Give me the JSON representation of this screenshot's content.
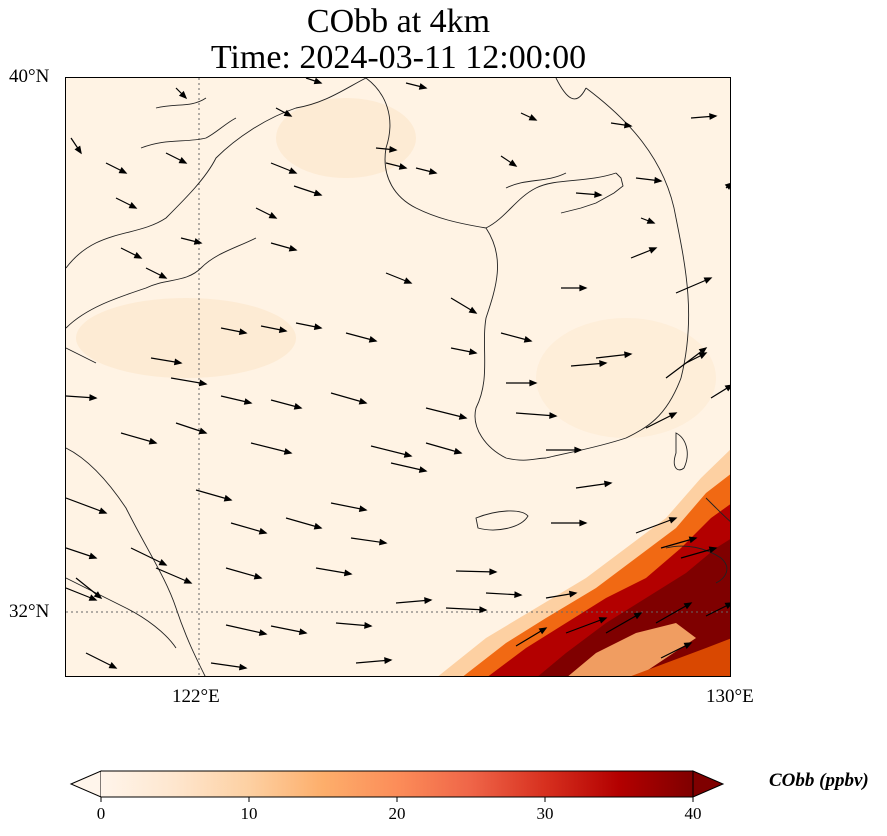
{
  "title": {
    "line1": "CObb at 4km",
    "line2": "Time: 2024-03-11 12:00:00"
  },
  "map": {
    "lat_ticks": [
      "40°N",
      "32°N"
    ],
    "lon_ticks": [
      "122°E",
      "130°E"
    ],
    "extent": {
      "lon_min": 120,
      "lon_max": 130,
      "lat_min": 31,
      "lat_max": 40
    },
    "gridlines": {
      "lon": [
        122
      ],
      "lat": [
        32
      ],
      "style": "dotted"
    },
    "features": [
      "coastlines",
      "borders"
    ],
    "field": "CObb",
    "overlay": "wind vectors",
    "high_concentration_region": "southeast corner",
    "colors": {
      "low": "#fff5eb",
      "mid": "#fdae6b",
      "high": "#7f0000"
    }
  },
  "colorbar": {
    "label": "CObb (ppbv)",
    "min": 0,
    "max": 40,
    "ticks": [
      "0",
      "10",
      "20",
      "30",
      "40"
    ],
    "cmap": "OrRd",
    "extend": "both",
    "colors": [
      "#fff5eb",
      "#fee6ce",
      "#fdd0a2",
      "#fdae6b",
      "#fd8d3c",
      "#f16913",
      "#d94801",
      "#a63603",
      "#7f0000"
    ]
  }
}
